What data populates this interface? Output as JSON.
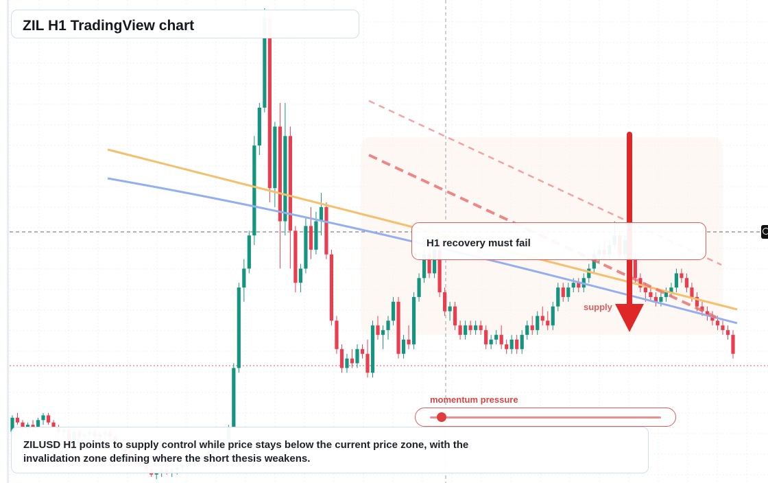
{
  "title": "ZIL H1 TradingView chart",
  "callout_text": "H1 recovery must fail",
  "supply_label": "supply",
  "momentum": {
    "label": "momentum pressure",
    "level": 0.05
  },
  "summary": "ZILUSD H1 points to supply control while price stays below the current price zone, with the invalidation zone defining where the short thesis weakens.",
  "colors": {
    "bullish": "#14957f",
    "bearish": "#ea3e50",
    "ma_orange": "#f5bf6c",
    "ma_blue": "#94aef2",
    "arrow": "#df2727",
    "channel": "#e86b6b"
  },
  "chart_data": {
    "type": "candlestick",
    "symbol": "ZILUSD",
    "timeframe": "H1",
    "ylim": [
      0,
      100
    ],
    "candles": [
      [
        10.5,
        14.0,
        9.0,
        13.5
      ],
      [
        13.5,
        14.5,
        12.0,
        12.5
      ],
      [
        12.5,
        13.0,
        10.5,
        11.0
      ],
      [
        11.0,
        12.5,
        10.0,
        12.0
      ],
      [
        12.0,
        13.0,
        10.5,
        11.5
      ],
      [
        11.5,
        13.5,
        11.0,
        13.0
      ],
      [
        13.0,
        14.5,
        12.0,
        14.0
      ],
      [
        14.0,
        14.5,
        12.0,
        12.5
      ],
      [
        12.5,
        13.0,
        11.0,
        11.5
      ],
      [
        11.5,
        12.0,
        10.0,
        10.5
      ],
      [
        10.5,
        11.5,
        9.5,
        11.0
      ],
      [
        11.0,
        11.5,
        7.0,
        7.5
      ],
      [
        7.5,
        11.0,
        7.0,
        10.5
      ],
      [
        10.5,
        11.0,
        9.0,
        9.5
      ],
      [
        9.5,
        10.5,
        8.5,
        10.0
      ],
      [
        10.0,
        11.0,
        9.5,
        10.5
      ],
      [
        10.5,
        11.0,
        9.0,
        9.5
      ],
      [
        9.5,
        10.5,
        9.0,
        10.0
      ],
      [
        10.0,
        11.0,
        9.0,
        10.5
      ],
      [
        10.5,
        11.0,
        9.0,
        9.5
      ],
      [
        9.5,
        10.0,
        8.0,
        8.5
      ],
      [
        8.5,
        9.0,
        7.0,
        7.5
      ],
      [
        7.5,
        8.0,
        6.0,
        6.5
      ],
      [
        6.5,
        7.0,
        5.0,
        5.5
      ],
      [
        5.5,
        6.0,
        4.0,
        4.5
      ],
      [
        4.5,
        5.0,
        3.0,
        3.5
      ],
      [
        3.5,
        4.0,
        2.0,
        2.5
      ],
      [
        2.5,
        3.0,
        1.0,
        1.5
      ],
      [
        1.5,
        2.5,
        0.5,
        2.0
      ],
      [
        2.0,
        3.0,
        1.0,
        2.5
      ],
      [
        2.5,
        3.5,
        1.5,
        2.0
      ],
      [
        2.0,
        3.0,
        1.0,
        2.5
      ],
      [
        2.5,
        3.5,
        1.5,
        3.0
      ],
      [
        3.0,
        4.0,
        2.0,
        3.5
      ],
      [
        3.5,
        4.5,
        2.5,
        4.0
      ],
      [
        4.0,
        5.0,
        3.0,
        4.5
      ],
      [
        4.5,
        5.5,
        3.5,
        5.0
      ],
      [
        5.0,
        6.0,
        4.0,
        5.5
      ],
      [
        5.5,
        6.5,
        4.5,
        6.0
      ],
      [
        6.0,
        7.0,
        5.0,
        6.5
      ],
      [
        6.5,
        7.5,
        5.5,
        7.0
      ],
      [
        7.0,
        9.0,
        6.0,
        8.5
      ],
      [
        8.5,
        12.0,
        8.0,
        11.5
      ],
      [
        11.5,
        25.0,
        11.0,
        24.0
      ],
      [
        24.0,
        42.0,
        23.0,
        41.0
      ],
      [
        41.0,
        47.0,
        38.0,
        45.0
      ],
      [
        45.0,
        53.0,
        44.0,
        52.0
      ],
      [
        52.0,
        73.0,
        50.0,
        71.0
      ],
      [
        71.0,
        80.0,
        69.0,
        79.0
      ],
      [
        79.0,
        100.0,
        78.0,
        98.0
      ],
      [
        98.0,
        99.0,
        59.0,
        62.0
      ],
      [
        62.0,
        76.0,
        58.0,
        75.0
      ],
      [
        75.0,
        80.0,
        45.0,
        55.0
      ],
      [
        55.0,
        80.0,
        52.0,
        73.0
      ],
      [
        73.0,
        75.0,
        45.0,
        53.0
      ],
      [
        53.0,
        54.0,
        40.0,
        42.0
      ],
      [
        42.0,
        46.0,
        40.0,
        45.0
      ],
      [
        45.0,
        56.0,
        44.0,
        54.0
      ],
      [
        54.0,
        58.0,
        47.0,
        49.0
      ],
      [
        49.0,
        57.0,
        48.0,
        55.0
      ],
      [
        55.0,
        61.0,
        52.0,
        58.0
      ],
      [
        58.0,
        59.0,
        47.0,
        48.0
      ],
      [
        48.0,
        49.0,
        33.0,
        34.0
      ],
      [
        34.0,
        35.0,
        27.0,
        28.0
      ],
      [
        28.0,
        29.0,
        23.0,
        24.0
      ],
      [
        24.0,
        27.0,
        23.0,
        26.0
      ],
      [
        26.0,
        28.0,
        24.0,
        25.0
      ],
      [
        25.0,
        29.0,
        24.0,
        28.0
      ],
      [
        28.0,
        29.0,
        26.0,
        27.0
      ],
      [
        27.0,
        30.0,
        22.0,
        23.0
      ],
      [
        23.0,
        34.0,
        22.0,
        33.0
      ],
      [
        33.0,
        35.0,
        30.0,
        31.0
      ],
      [
        31.0,
        33.0,
        28.0,
        32.0
      ],
      [
        32.0,
        35.0,
        30.0,
        34.0
      ],
      [
        34.0,
        39.0,
        33.0,
        38.0
      ],
      [
        38.0,
        39.0,
        26.0,
        27.0
      ],
      [
        27.0,
        31.0,
        26.0,
        30.0
      ],
      [
        30.0,
        33.0,
        28.0,
        29.0
      ],
      [
        29.0,
        40.0,
        28.0,
        39.0
      ],
      [
        39.0,
        44.0,
        38.0,
        43.0
      ],
      [
        43.0,
        49.0,
        42.0,
        48.0
      ],
      [
        48.0,
        51.0,
        43.0,
        44.0
      ],
      [
        44.0,
        50.0,
        43.0,
        49.0
      ],
      [
        49.0,
        51.0,
        39.0,
        40.0
      ],
      [
        40.0,
        41.0,
        35.0,
        36.0
      ],
      [
        36.0,
        38.0,
        34.0,
        37.0
      ],
      [
        37.0,
        38.0,
        32.0,
        33.0
      ],
      [
        33.0,
        34.0,
        30.0,
        31.0
      ],
      [
        31.0,
        34.0,
        30.0,
        33.0
      ],
      [
        33.0,
        34.0,
        31.0,
        32.0
      ],
      [
        32.0,
        34.0,
        31.0,
        33.0
      ],
      [
        33.0,
        34.0,
        31.0,
        32.0
      ],
      [
        32.0,
        33.0,
        28.0,
        29.0
      ],
      [
        29.0,
        31.0,
        28.0,
        30.0
      ],
      [
        30.0,
        32.0,
        29.0,
        31.0
      ],
      [
        31.0,
        33.0,
        28.0,
        29.0
      ],
      [
        29.0,
        30.0,
        27.0,
        28.0
      ],
      [
        28.0,
        31.0,
        27.0,
        30.0
      ],
      [
        30.0,
        31.0,
        27.0,
        28.0
      ],
      [
        28.0,
        32.0,
        27.0,
        31.0
      ],
      [
        31.0,
        34.0,
        30.0,
        33.0
      ],
      [
        33.0,
        35.0,
        31.0,
        32.0
      ],
      [
        32.0,
        36.0,
        31.0,
        35.0
      ],
      [
        35.0,
        37.0,
        33.0,
        34.0
      ],
      [
        34.0,
        36.0,
        32.0,
        33.0
      ],
      [
        33.0,
        38.0,
        32.0,
        37.0
      ],
      [
        37.0,
        42.0,
        36.0,
        41.0
      ],
      [
        41.0,
        42.0,
        38.0,
        39.0
      ],
      [
        39.0,
        42.0,
        38.0,
        41.0
      ],
      [
        41.0,
        43.0,
        40.0,
        42.0
      ],
      [
        42.0,
        43.0,
        40.0,
        41.0
      ],
      [
        41.0,
        44.0,
        40.0,
        43.0
      ],
      [
        43.0,
        46.0,
        42.0,
        45.0
      ],
      [
        45.0,
        49.0,
        44.0,
        48.0
      ],
      [
        48.0,
        50.0,
        46.0,
        49.0
      ],
      [
        49.0,
        51.0,
        47.0,
        48.0
      ],
      [
        48.0,
        51.0,
        47.0,
        50.0
      ],
      [
        50.0,
        55.0,
        49.0,
        52.0
      ],
      [
        52.0,
        53.0,
        47.0,
        48.0
      ],
      [
        48.0,
        52.0,
        47.0,
        51.0
      ],
      [
        51.0,
        52.0,
        46.0,
        47.0
      ],
      [
        47.0,
        48.0,
        42.0,
        43.0
      ],
      [
        43.0,
        44.0,
        40.0,
        41.0
      ],
      [
        41.0,
        42.0,
        38.0,
        40.0
      ],
      [
        40.0,
        41.0,
        38.0,
        39.0
      ],
      [
        39.0,
        40.0,
        37.0,
        38.0
      ],
      [
        38.0,
        40.0,
        37.0,
        39.0
      ],
      [
        39.0,
        41.0,
        38.0,
        40.0
      ],
      [
        40.0,
        42.0,
        39.0,
        41.0
      ],
      [
        41.0,
        45.0,
        40.0,
        44.0
      ],
      [
        44.0,
        45.0,
        42.0,
        43.0
      ],
      [
        43.0,
        44.0,
        40.0,
        41.0
      ],
      [
        41.0,
        42.0,
        38.0,
        39.0
      ],
      [
        39.0,
        40.0,
        36.0,
        37.0
      ],
      [
        37.0,
        38.0,
        35.0,
        36.0
      ],
      [
        36.0,
        37.0,
        34.0,
        35.0
      ],
      [
        35.0,
        36.0,
        33.0,
        34.0
      ],
      [
        34.0,
        35.0,
        32.0,
        33.0
      ],
      [
        33.0,
        34.0,
        31.0,
        32.0
      ],
      [
        32.0,
        33.0,
        30.0,
        31.0
      ],
      [
        31.0,
        32.0,
        26.0,
        27.0
      ]
    ]
  }
}
